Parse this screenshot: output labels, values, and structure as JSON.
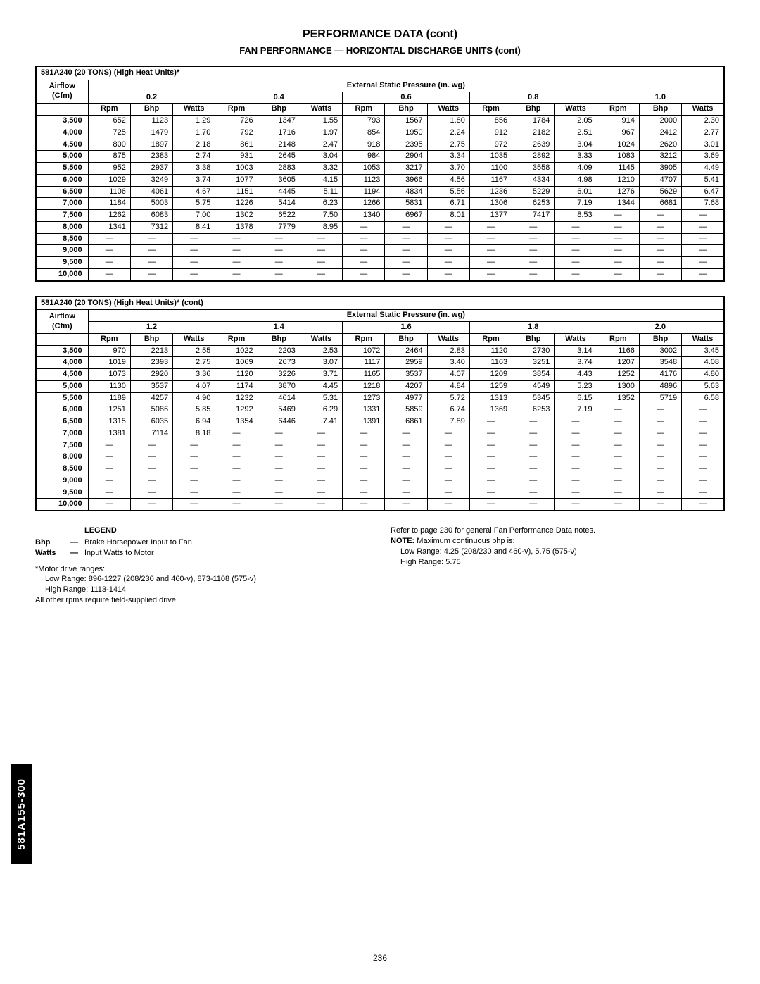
{
  "titles": {
    "main": "PERFORMANCE DATA (cont)",
    "sub": "FAN PERFORMANCE — HORIZONTAL DISCHARGE UNITS (cont)"
  },
  "side_tab": "581A155-300",
  "page_number": "236",
  "model_header_1": "581A240 (20 TONS) (High Heat Units)*",
  "model_header_2": "581A240 (20 TONS) (High Heat Units)* (cont)",
  "ext_header": "External Static Pressure (in. wg)",
  "airflow_label": "Airflow\n(Cfm)",
  "col_labels": {
    "rpm": "Rpm",
    "bhp": "Bhp",
    "watts": "Watts"
  },
  "pressures_1": [
    "0.2",
    "0.4",
    "0.6",
    "0.8",
    "1.0"
  ],
  "pressures_2": [
    "1.2",
    "1.4",
    "1.6",
    "1.8",
    "2.0"
  ],
  "airflows": [
    "3,500",
    "4,000",
    "4,500",
    "5,000",
    "5,500",
    "6,000",
    "6,500",
    "7,000",
    "7,500",
    "8,000",
    "8,500",
    "9,000",
    "9,500",
    "10,000"
  ],
  "table1": [
    [
      [
        "652",
        "1123",
        "1.29"
      ],
      [
        "726",
        "1347",
        "1.55"
      ],
      [
        "793",
        "1567",
        "1.80"
      ],
      [
        "856",
        "1784",
        "2.05"
      ],
      [
        "914",
        "2000",
        "2.30"
      ]
    ],
    [
      [
        "725",
        "1479",
        "1.70"
      ],
      [
        "792",
        "1716",
        "1.97"
      ],
      [
        "854",
        "1950",
        "2.24"
      ],
      [
        "912",
        "2182",
        "2.51"
      ],
      [
        "967",
        "2412",
        "2.77"
      ]
    ],
    [
      [
        "800",
        "1897",
        "2.18"
      ],
      [
        "861",
        "2148",
        "2.47"
      ],
      [
        "918",
        "2395",
        "2.75"
      ],
      [
        "972",
        "2639",
        "3.04"
      ],
      [
        "1024",
        "2620",
        "3.01"
      ]
    ],
    [
      [
        "875",
        "2383",
        "2.74"
      ],
      [
        "931",
        "2645",
        "3.04"
      ],
      [
        "984",
        "2904",
        "3.34"
      ],
      [
        "1035",
        "2892",
        "3.33"
      ],
      [
        "1083",
        "3212",
        "3.69"
      ]
    ],
    [
      [
        "952",
        "2937",
        "3.38"
      ],
      [
        "1003",
        "2883",
        "3.32"
      ],
      [
        "1053",
        "3217",
        "3.70"
      ],
      [
        "1100",
        "3558",
        "4.09"
      ],
      [
        "1145",
        "3905",
        "4.49"
      ]
    ],
    [
      [
        "1029",
        "3249",
        "3.74"
      ],
      [
        "1077",
        "3605",
        "4.15"
      ],
      [
        "1123",
        "3966",
        "4.56"
      ],
      [
        "1167",
        "4334",
        "4.98"
      ],
      [
        "1210",
        "4707",
        "5.41"
      ]
    ],
    [
      [
        "1106",
        "4061",
        "4.67"
      ],
      [
        "1151",
        "4445",
        "5.11"
      ],
      [
        "1194",
        "4834",
        "5.56"
      ],
      [
        "1236",
        "5229",
        "6.01"
      ],
      [
        "1276",
        "5629",
        "6.47"
      ]
    ],
    [
      [
        "1184",
        "5003",
        "5.75"
      ],
      [
        "1226",
        "5414",
        "6.23"
      ],
      [
        "1266",
        "5831",
        "6.71"
      ],
      [
        "1306",
        "6253",
        "7.19"
      ],
      [
        "1344",
        "6681",
        "7.68"
      ]
    ],
    [
      [
        "1262",
        "6083",
        "7.00"
      ],
      [
        "1302",
        "6522",
        "7.50"
      ],
      [
        "1340",
        "6967",
        "8.01"
      ],
      [
        "1377",
        "7417",
        "8.53"
      ],
      [
        "—",
        "—",
        "—"
      ]
    ],
    [
      [
        "1341",
        "7312",
        "8.41"
      ],
      [
        "1378",
        "7779",
        "8.95"
      ],
      [
        "—",
        "—",
        "—"
      ],
      [
        "—",
        "—",
        "—"
      ],
      [
        "—",
        "—",
        "—"
      ]
    ],
    [
      [
        "—",
        "—",
        "—"
      ],
      [
        "—",
        "—",
        "—"
      ],
      [
        "—",
        "—",
        "—"
      ],
      [
        "—",
        "—",
        "—"
      ],
      [
        "—",
        "—",
        "—"
      ]
    ],
    [
      [
        "—",
        "—",
        "—"
      ],
      [
        "—",
        "—",
        "—"
      ],
      [
        "—",
        "—",
        "—"
      ],
      [
        "—",
        "—",
        "—"
      ],
      [
        "—",
        "—",
        "—"
      ]
    ],
    [
      [
        "—",
        "—",
        "—"
      ],
      [
        "—",
        "—",
        "—"
      ],
      [
        "—",
        "—",
        "—"
      ],
      [
        "—",
        "—",
        "—"
      ],
      [
        "—",
        "—",
        "—"
      ]
    ],
    [
      [
        "—",
        "—",
        "—"
      ],
      [
        "—",
        "—",
        "—"
      ],
      [
        "—",
        "—",
        "—"
      ],
      [
        "—",
        "—",
        "—"
      ],
      [
        "—",
        "—",
        "—"
      ]
    ]
  ],
  "table2": [
    [
      [
        "970",
        "2213",
        "2.55"
      ],
      [
        "1022",
        "2203",
        "2.53"
      ],
      [
        "1072",
        "2464",
        "2.83"
      ],
      [
        "1120",
        "2730",
        "3.14"
      ],
      [
        "1166",
        "3002",
        "3.45"
      ]
    ],
    [
      [
        "1019",
        "2393",
        "2.75"
      ],
      [
        "1069",
        "2673",
        "3.07"
      ],
      [
        "1117",
        "2959",
        "3.40"
      ],
      [
        "1163",
        "3251",
        "3.74"
      ],
      [
        "1207",
        "3548",
        "4.08"
      ]
    ],
    [
      [
        "1073",
        "2920",
        "3.36"
      ],
      [
        "1120",
        "3226",
        "3.71"
      ],
      [
        "1165",
        "3537",
        "4.07"
      ],
      [
        "1209",
        "3854",
        "4.43"
      ],
      [
        "1252",
        "4176",
        "4.80"
      ]
    ],
    [
      [
        "1130",
        "3537",
        "4.07"
      ],
      [
        "1174",
        "3870",
        "4.45"
      ],
      [
        "1218",
        "4207",
        "4.84"
      ],
      [
        "1259",
        "4549",
        "5.23"
      ],
      [
        "1300",
        "4896",
        "5.63"
      ]
    ],
    [
      [
        "1189",
        "4257",
        "4.90"
      ],
      [
        "1232",
        "4614",
        "5.31"
      ],
      [
        "1273",
        "4977",
        "5.72"
      ],
      [
        "1313",
        "5345",
        "6.15"
      ],
      [
        "1352",
        "5719",
        "6.58"
      ]
    ],
    [
      [
        "1251",
        "5086",
        "5.85"
      ],
      [
        "1292",
        "5469",
        "6.29"
      ],
      [
        "1331",
        "5859",
        "6.74"
      ],
      [
        "1369",
        "6253",
        "7.19"
      ],
      [
        "—",
        "—",
        "—"
      ]
    ],
    [
      [
        "1315",
        "6035",
        "6.94"
      ],
      [
        "1354",
        "6446",
        "7.41"
      ],
      [
        "1391",
        "6861",
        "7.89"
      ],
      [
        "—",
        "—",
        "—"
      ],
      [
        "—",
        "—",
        "—"
      ]
    ],
    [
      [
        "1381",
        "7114",
        "8.18"
      ],
      [
        "—",
        "—",
        "—"
      ],
      [
        "—",
        "—",
        "—"
      ],
      [
        "—",
        "—",
        "—"
      ],
      [
        "—",
        "—",
        "—"
      ]
    ],
    [
      [
        "—",
        "—",
        "—"
      ],
      [
        "—",
        "—",
        "—"
      ],
      [
        "—",
        "—",
        "—"
      ],
      [
        "—",
        "—",
        "—"
      ],
      [
        "—",
        "—",
        "—"
      ]
    ],
    [
      [
        "—",
        "—",
        "—"
      ],
      [
        "—",
        "—",
        "—"
      ],
      [
        "—",
        "—",
        "—"
      ],
      [
        "—",
        "—",
        "—"
      ],
      [
        "—",
        "—",
        "—"
      ]
    ],
    [
      [
        "—",
        "—",
        "—"
      ],
      [
        "—",
        "—",
        "—"
      ],
      [
        "—",
        "—",
        "—"
      ],
      [
        "—",
        "—",
        "—"
      ],
      [
        "—",
        "—",
        "—"
      ]
    ],
    [
      [
        "—",
        "—",
        "—"
      ],
      [
        "—",
        "—",
        "—"
      ],
      [
        "—",
        "—",
        "—"
      ],
      [
        "—",
        "—",
        "—"
      ],
      [
        "—",
        "—",
        "—"
      ]
    ],
    [
      [
        "—",
        "—",
        "—"
      ],
      [
        "—",
        "—",
        "—"
      ],
      [
        "—",
        "—",
        "—"
      ],
      [
        "—",
        "—",
        "—"
      ],
      [
        "—",
        "—",
        "—"
      ]
    ],
    [
      [
        "—",
        "—",
        "—"
      ],
      [
        "—",
        "—",
        "—"
      ],
      [
        "—",
        "—",
        "—"
      ],
      [
        "—",
        "—",
        "—"
      ],
      [
        "—",
        "—",
        "—"
      ]
    ]
  ],
  "legend": {
    "title": "LEGEND",
    "bhp_t": "Bhp",
    "bhp_d": "Brake Horsepower Input to Fan",
    "watts_t": "Watts",
    "watts_d": "Input Watts to Motor"
  },
  "notes_left": {
    "l1": "*Motor drive ranges:",
    "l2": "Low Range: 896-1227 (208/230 and 460-v), 873-1108 (575-v)",
    "l3": "High Range: 1113-1414",
    "l4": "All other rpms require field-supplied drive."
  },
  "notes_right": {
    "l1": "Refer to page 230 for general Fan Performance Data notes.",
    "l2a": "NOTE:",
    "l2b": " Maximum continuous bhp is:",
    "l3": "Low Range: 4.25 (208/230 and 460-v), 5.75 (575-v)",
    "l4": "High Range: 5.75"
  }
}
